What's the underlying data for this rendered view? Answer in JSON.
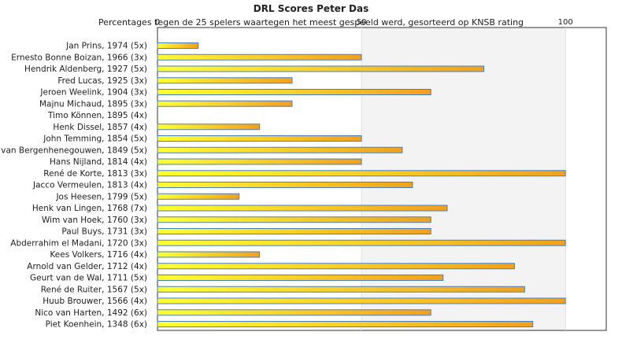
{
  "chart_data": {
    "type": "bar",
    "orientation": "horizontal",
    "title": "DRL Scores Peter Das",
    "subtitle": "Percentages tegen de 25 spelers waartegen het meest gespeeld werd, gesorteerd op KNSB rating",
    "xlim": [
      0,
      110
    ],
    "xticks": [
      0,
      50,
      100
    ],
    "grid": true,
    "categories": [
      "Jan Prins, 1974 (5x)",
      "Ernesto Bonne Boizan, 1966 (3x)",
      "Hendrik Aldenberg, 1927 (5x)",
      "Fred Lucas, 1925 (3x)",
      "Jeroen Weelink, 1904 (3x)",
      "Majnu Michaud, 1895 (3x)",
      "Timo Können, 1895 (4x)",
      "Henk Dissel, 1857 (4x)",
      "John Temming, 1854 (5x)",
      "van Bergenhenegouwen, 1849 (5x)",
      "Hans Nijland, 1814 (4x)",
      "René de Korte, 1813 (3x)",
      "Jacco Vermeulen, 1813 (4x)",
      "Jos Heesen, 1799 (5x)",
      "Henk van Lingen, 1768 (7x)",
      "Wim van Hoek, 1760 (3x)",
      "Paul Buys, 1731 (3x)",
      "Abderrahim el Madani, 1720 (3x)",
      "Kees Volkers, 1716 (4x)",
      "Arnold van Gelder, 1712 (4x)",
      "Geurt van de Wal, 1711 (5x)",
      "René de Ruiter, 1567 (5x)",
      "Huub Brouwer, 1566 (4x)",
      "Nico van Harten, 1492 (6x)",
      "Piet Koenhein, 1348 (6x)"
    ],
    "values": [
      10,
      50,
      80,
      33,
      67,
      33,
      0,
      25,
      50,
      60,
      50,
      100,
      62.5,
      20,
      71,
      67,
      67,
      100,
      25,
      87.5,
      70,
      90,
      100,
      67,
      92
    ],
    "colors": {
      "bar_light": "#ffff33",
      "bar_dark": "#f0a020",
      "bar_edge": "#4a7fbf"
    }
  }
}
